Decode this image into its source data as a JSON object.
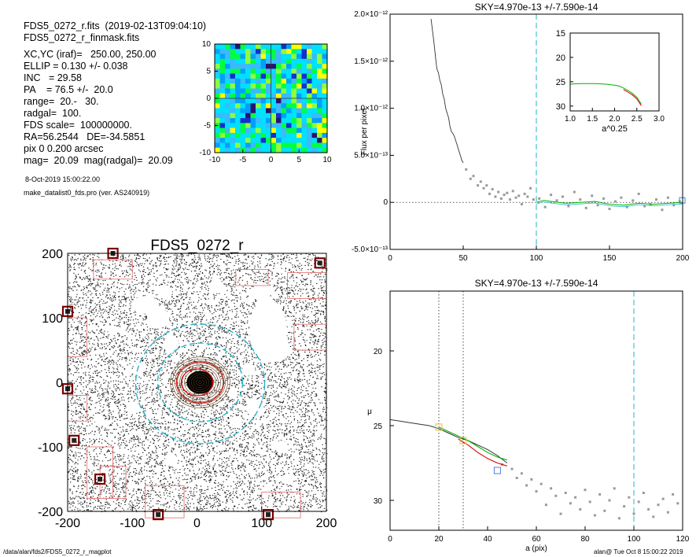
{
  "header": {
    "lines": [
      "FDS5_0272_r.fits  (2019-02-13T09:04:10)",
      "FDS5_0272_r_finmask.fits"
    ],
    "params": [
      "XC,YC (iraf)=   250.00, 250.00",
      "ELLIP = 0.130 +/- 0.038",
      "INC   = 29.58",
      "PA    = 76.5 +/-  20.0",
      "range=  20.-   30.",
      "radgal=  100.",
      "FDS scale=  100000000.",
      "RA=56.2544   DE=-34.5851",
      "pix 0 0.200 arcsec",
      "mag=  20.09  mag(radgal)=  20.09"
    ],
    "date_line": "8-Oct-2019 15:00:22.00",
    "program_line": "make_datalist0_fds.pro (ver. AS240919)"
  },
  "footer": {
    "left": "/data/alan/fds2/FDS5_0272_r_magplot",
    "right": "alan@  Tue Oct  8 15:00:22 2019"
  },
  "colors": {
    "cyan": "#22b5c8",
    "green": "#00b000",
    "red": "#dd0000",
    "points": "#9a9a9a",
    "mask": "#e46a6a"
  },
  "chart_data": [
    {
      "id": "thumbnail",
      "type": "heatmap",
      "xlim": [
        -10,
        10
      ],
      "ylim": [
        -10,
        10
      ],
      "xticks": [
        "-10",
        "-5",
        "0",
        "5",
        "10"
      ],
      "yticks": [
        "10",
        "5",
        "0",
        "-5",
        "-10"
      ]
    },
    {
      "id": "galaxy-image",
      "type": "heatmap",
      "title": "FDS5_0272_r",
      "xlim": [
        -200,
        200
      ],
      "ylim": [
        -200,
        200
      ],
      "xticks": [
        "-200",
        "-100",
        "0",
        "100",
        "200"
      ],
      "yticks": [
        "200",
        "100",
        "0",
        "-100",
        "-200"
      ]
    },
    {
      "id": "flux-profile",
      "type": "line",
      "title": "SKY=4.970e-13 +/-7.590e-14",
      "ylabel": "Flux per pixel",
      "xlim": [
        0,
        200
      ],
      "ylim": [
        -5e-13,
        2e-12
      ],
      "xticks": [
        "0",
        "50",
        "100",
        "150",
        "200"
      ],
      "yticks": [
        "2.0×10⁻¹²",
        "1.5×10⁻¹²",
        "1.0×10⁻¹²",
        "5.0×10⁻¹³",
        "0",
        "-5.0×10⁻¹³"
      ],
      "ytick_values": [
        2e-12,
        1.5e-12,
        1e-12,
        5e-13,
        0,
        -5e-13
      ],
      "vline": 100,
      "hline": 0,
      "profile": {
        "x": [
          28,
          30,
          31,
          32,
          33,
          34,
          35,
          36,
          37,
          38,
          39,
          40,
          41,
          42,
          43,
          44,
          45,
          46,
          47,
          48,
          49,
          50
        ],
        "y": [
          1.95e-12,
          1.7e-12,
          1.55e-12,
          1.42e-12,
          1.38e-12,
          1.3e-12,
          1.25e-12,
          1.15e-12,
          1.1e-12,
          1e-12,
          9.5e-13,
          9e-13,
          8e-13,
          7.5e-13,
          7.3e-13,
          7e-13,
          6.5e-13,
          6e-13,
          5.5e-13,
          5e-13,
          4.5e-13,
          4.2e-13
        ]
      },
      "sky_curve": {
        "x": [
          100,
          105,
          110,
          120,
          130,
          140,
          150,
          160,
          170,
          180,
          190,
          200
        ],
        "y": [
          0,
          2e-14,
          1e-14,
          -1e-14,
          0,
          1e-14,
          -2e-14,
          -3e-14,
          -1e-14,
          -2e-14,
          -1e-14,
          0
        ]
      },
      "scatter": {
        "x": [
          52,
          55,
          57,
          60,
          62,
          64,
          66,
          68,
          70,
          72,
          74,
          76,
          78,
          80,
          82,
          84,
          86,
          88,
          90,
          92,
          94,
          96,
          98,
          102,
          106,
          110,
          114,
          118,
          122,
          126,
          130,
          134,
          138,
          142,
          146,
          150,
          154,
          158,
          162,
          166,
          170,
          174,
          178,
          182,
          186,
          190,
          194,
          198
        ],
        "y": [
          3.5e-13,
          2.5e-13,
          2.8e-13,
          1.8e-13,
          2.2e-13,
          1.5e-13,
          1.8e-13,
          9e-14,
          1.4e-13,
          6e-14,
          1.1e-13,
          4e-14,
          8e-14,
          1e-13,
          3e-14,
          1.2e-13,
          5e-14,
          7e-14,
          -2e-14,
          9e-14,
          6e-14,
          1.5e-13,
          3e-14,
          4e-14,
          -5e-14,
          8e-14,
          2e-14,
          6e-14,
          -4e-14,
          1.1e-13,
          3e-14,
          -6e-14,
          7e-14,
          -3e-14,
          4e-14,
          -7e-14,
          1e-14,
          5e-14,
          -5e-14,
          2e-14,
          9e-14,
          -4e-14,
          -2e-14,
          3e-14,
          -8e-14,
          5e-14,
          -3e-14,
          1e-14
        ]
      },
      "inset": {
        "xlabel": "a^0.25",
        "xlim": [
          1.0,
          3.0
        ],
        "ylim": [
          31,
          15
        ],
        "xticks": [
          "1.0",
          "1.5",
          "2.0",
          "2.5",
          "3.0"
        ],
        "yticks": [
          "15",
          "20",
          "25",
          "30"
        ],
        "ytick_values": [
          15,
          20,
          25,
          30
        ],
        "curve": {
          "x": [
            1.0,
            1.2,
            1.4,
            1.6,
            1.8,
            1.9,
            2.0,
            2.1,
            2.2,
            2.3,
            2.4,
            2.5,
            2.55,
            2.6
          ],
          "y": [
            25.5,
            25.4,
            25.4,
            25.4,
            25.5,
            25.6,
            25.7,
            25.9,
            26.3,
            26.8,
            27.4,
            28.2,
            28.9,
            29.6
          ]
        }
      }
    },
    {
      "id": "mu-profile",
      "type": "line",
      "title": "SKY=4.970e-13 +/-7.590e-14",
      "xlabel": "a (pix)",
      "ylabel": "μ",
      "xlim": [
        0,
        120
      ],
      "ylim": [
        32,
        16
      ],
      "xticks": [
        "0",
        "20",
        "40",
        "60",
        "80",
        "100",
        "120"
      ],
      "yticks": [
        "20",
        "25",
        "30"
      ],
      "ytick_values": [
        20,
        25,
        30
      ],
      "vlines_dotted": [
        20,
        30
      ],
      "vline_dashed": 100,
      "profile": {
        "x": [
          0,
          4,
          8,
          12,
          16,
          20,
          24,
          28,
          32,
          36,
          40,
          44,
          48
        ],
        "y": [
          24.6,
          24.7,
          24.8,
          24.9,
          25.0,
          25.2,
          25.5,
          25.8,
          26.0,
          26.3,
          26.6,
          27.0,
          27.5
        ]
      },
      "green_curve": {
        "x": [
          20,
          24,
          28,
          32,
          36,
          40,
          44,
          48
        ],
        "y": [
          25.1,
          25.4,
          25.7,
          26.0,
          26.4,
          26.8,
          27.1,
          27.3
        ]
      },
      "red_curve": {
        "x": [
          28,
          32,
          36,
          40,
          44,
          48
        ],
        "y": [
          25.9,
          26.3,
          26.8,
          27.2,
          27.5,
          27.7
        ]
      },
      "scatter": {
        "x": [
          46,
          50,
          52,
          54,
          56,
          58,
          60,
          62,
          64,
          66,
          68,
          70,
          72,
          74,
          76,
          78,
          80,
          82,
          84,
          86,
          88,
          90,
          92,
          94,
          96,
          98,
          100,
          102,
          104,
          106,
          108,
          110,
          112,
          114,
          116,
          118
        ],
        "y": [
          27.6,
          27.9,
          28.5,
          28.2,
          29.0,
          28.6,
          29.4,
          28.9,
          30.3,
          29.2,
          29.7,
          30.9,
          29.5,
          30.2,
          29.8,
          30.6,
          29.3,
          30.1,
          31.0,
          29.6,
          30.7,
          30.0,
          29.2,
          31.2,
          30.4,
          29.8,
          30.9,
          30.1,
          29.5,
          30.6,
          31.1,
          30.3,
          29.9,
          30.8,
          29.6,
          30.2
        ]
      },
      "markers": [
        {
          "x": 20,
          "y": 25.1,
          "color": "#e0c040"
        },
        {
          "x": 30,
          "y": 26.0,
          "color": "#e0c040"
        },
        {
          "x": 44,
          "y": 28.0,
          "color": "#4a7fd8"
        }
      ]
    }
  ]
}
